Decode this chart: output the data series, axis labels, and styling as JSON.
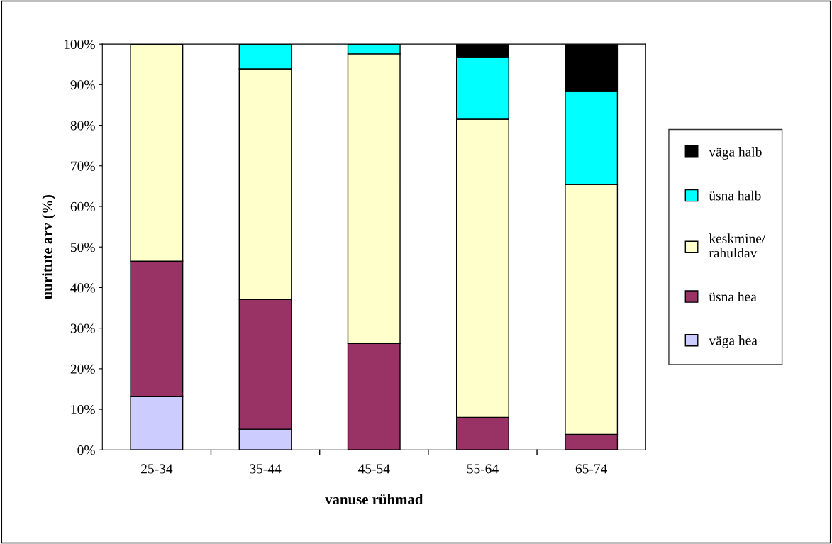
{
  "chart_data": {
    "type": "bar",
    "stacked": true,
    "categories": [
      "25-34",
      "35-44",
      "45-54",
      "55-64",
      "65-74"
    ],
    "xlabel": "vanuse rühmad",
    "ylabel": "uuritute arv (%)",
    "ylim": [
      0,
      100
    ],
    "yticks": [
      {
        "value": 0,
        "label": "0%"
      },
      {
        "value": 10,
        "label": "10%"
      },
      {
        "value": 20,
        "label": "20%"
      },
      {
        "value": 30,
        "label": "30%"
      },
      {
        "value": 40,
        "label": "40%"
      },
      {
        "value": 50,
        "label": "50%"
      },
      {
        "value": 60,
        "label": "60%"
      },
      {
        "value": 70,
        "label": "70%"
      },
      {
        "value": 80,
        "label": "80%"
      },
      {
        "value": 90,
        "label": "90%"
      },
      {
        "value": 100,
        "label": "100%"
      }
    ],
    "grid": false,
    "legend": "right",
    "series": [
      {
        "name": "väga hea",
        "color": "#ccccff",
        "values": [
          13.1,
          5.1,
          0,
          0,
          0
        ]
      },
      {
        "name": "üsna hea",
        "color": "#993366",
        "values": [
          33.4,
          32.0,
          26.2,
          8.0,
          3.8
        ]
      },
      {
        "name": "keskmine/\nrahuldav",
        "color": "#ffffcc",
        "values": [
          53.5,
          56.8,
          71.4,
          73.5,
          61.6
        ]
      },
      {
        "name": "üsna halb",
        "color": "#00ffff",
        "values": [
          0,
          6.1,
          2.4,
          15.2,
          22.9
        ]
      },
      {
        "name": "väga halb",
        "color": "#000000",
        "values": [
          0,
          0,
          0,
          3.3,
          11.7
        ]
      }
    ]
  }
}
